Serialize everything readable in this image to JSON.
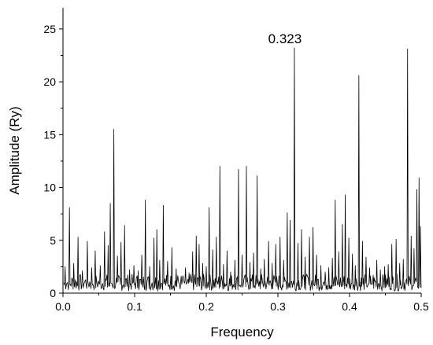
{
  "chart_data": {
    "type": "line",
    "title": "",
    "xlabel": "Frequency",
    "ylabel": "Amplitude (Ry)",
    "xlim": [
      0.0,
      0.5
    ],
    "ylim": [
      0,
      27
    ],
    "x_ticks": [
      "0.0",
      "0.1",
      "0.2",
      "0.3",
      "0.4",
      "0.5"
    ],
    "y_ticks": [
      "0",
      "5",
      "10",
      "15",
      "20",
      "25"
    ],
    "grid": false,
    "legend": "none",
    "line_color": "#000000",
    "annotation": {
      "text": "0.323",
      "x": 0.323,
      "y": 23.2
    },
    "peaks": [
      {
        "x": 0.003,
        "y": 2.5
      },
      {
        "x": 0.009,
        "y": 8.1
      },
      {
        "x": 0.015,
        "y": 2.8
      },
      {
        "x": 0.021,
        "y": 5.3
      },
      {
        "x": 0.027,
        "y": 2.1
      },
      {
        "x": 0.034,
        "y": 4.9
      },
      {
        "x": 0.04,
        "y": 2.4
      },
      {
        "x": 0.045,
        "y": 4.0
      },
      {
        "x": 0.052,
        "y": 2.6
      },
      {
        "x": 0.058,
        "y": 5.8
      },
      {
        "x": 0.063,
        "y": 4.5
      },
      {
        "x": 0.066,
        "y": 8.5
      },
      {
        "x": 0.071,
        "y": 15.5
      },
      {
        "x": 0.076,
        "y": 3.5
      },
      {
        "x": 0.081,
        "y": 4.8
      },
      {
        "x": 0.086,
        "y": 6.4
      },
      {
        "x": 0.093,
        "y": 2.2
      },
      {
        "x": 0.099,
        "y": 2.6
      },
      {
        "x": 0.105,
        "y": 2.1
      },
      {
        "x": 0.11,
        "y": 3.6
      },
      {
        "x": 0.115,
        "y": 8.8
      },
      {
        "x": 0.121,
        "y": 2.5
      },
      {
        "x": 0.127,
        "y": 5.2
      },
      {
        "x": 0.131,
        "y": 6.0
      },
      {
        "x": 0.135,
        "y": 3.1
      },
      {
        "x": 0.14,
        "y": 8.3
      },
      {
        "x": 0.146,
        "y": 3.0
      },
      {
        "x": 0.152,
        "y": 4.3
      },
      {
        "x": 0.158,
        "y": 2.3
      },
      {
        "x": 0.165,
        "y": 1.6
      },
      {
        "x": 0.171,
        "y": 2.4
      },
      {
        "x": 0.176,
        "y": 1.9
      },
      {
        "x": 0.181,
        "y": 3.9
      },
      {
        "x": 0.186,
        "y": 5.4
      },
      {
        "x": 0.19,
        "y": 4.6
      },
      {
        "x": 0.195,
        "y": 2.8
      },
      {
        "x": 0.2,
        "y": 2.5
      },
      {
        "x": 0.204,
        "y": 8.1
      },
      {
        "x": 0.209,
        "y": 4.1
      },
      {
        "x": 0.214,
        "y": 5.3
      },
      {
        "x": 0.219,
        "y": 12.0
      },
      {
        "x": 0.224,
        "y": 2.7
      },
      {
        "x": 0.229,
        "y": 4.0
      },
      {
        "x": 0.234,
        "y": 2.0
      },
      {
        "x": 0.24,
        "y": 3.1
      },
      {
        "x": 0.245,
        "y": 11.7
      },
      {
        "x": 0.25,
        "y": 3.6
      },
      {
        "x": 0.256,
        "y": 12.0
      },
      {
        "x": 0.261,
        "y": 2.9
      },
      {
        "x": 0.266,
        "y": 3.8
      },
      {
        "x": 0.271,
        "y": 11.1
      },
      {
        "x": 0.276,
        "y": 2.3
      },
      {
        "x": 0.281,
        "y": 3.2
      },
      {
        "x": 0.287,
        "y": 4.9
      },
      {
        "x": 0.292,
        "y": 2.8
      },
      {
        "x": 0.297,
        "y": 4.6
      },
      {
        "x": 0.303,
        "y": 5.3
      },
      {
        "x": 0.308,
        "y": 3.1
      },
      {
        "x": 0.313,
        "y": 7.6
      },
      {
        "x": 0.317,
        "y": 6.9
      },
      {
        "x": 0.323,
        "y": 23.2
      },
      {
        "x": 0.328,
        "y": 4.7
      },
      {
        "x": 0.333,
        "y": 6.0
      },
      {
        "x": 0.338,
        "y": 3.4
      },
      {
        "x": 0.344,
        "y": 5.3
      },
      {
        "x": 0.349,
        "y": 6.2
      },
      {
        "x": 0.354,
        "y": 3.6
      },
      {
        "x": 0.36,
        "y": 2.6
      },
      {
        "x": 0.366,
        "y": 2.0
      },
      {
        "x": 0.371,
        "y": 2.4
      },
      {
        "x": 0.376,
        "y": 3.3
      },
      {
        "x": 0.38,
        "y": 8.8
      },
      {
        "x": 0.385,
        "y": 3.9
      },
      {
        "x": 0.39,
        "y": 6.5
      },
      {
        "x": 0.394,
        "y": 9.3
      },
      {
        "x": 0.399,
        "y": 5.2
      },
      {
        "x": 0.404,
        "y": 3.7
      },
      {
        "x": 0.408,
        "y": 2.6
      },
      {
        "x": 0.413,
        "y": 20.6
      },
      {
        "x": 0.418,
        "y": 4.9
      },
      {
        "x": 0.423,
        "y": 3.4
      },
      {
        "x": 0.428,
        "y": 2.4
      },
      {
        "x": 0.433,
        "y": 1.7
      },
      {
        "x": 0.438,
        "y": 3.1
      },
      {
        "x": 0.443,
        "y": 2.2
      },
      {
        "x": 0.449,
        "y": 2.5
      },
      {
        "x": 0.454,
        "y": 2.7
      },
      {
        "x": 0.459,
        "y": 4.6
      },
      {
        "x": 0.465,
        "y": 5.1
      },
      {
        "x": 0.47,
        "y": 2.8
      },
      {
        "x": 0.475,
        "y": 3.2
      },
      {
        "x": 0.481,
        "y": 23.1
      },
      {
        "x": 0.486,
        "y": 5.4
      },
      {
        "x": 0.49,
        "y": 4.2
      },
      {
        "x": 0.494,
        "y": 9.8
      },
      {
        "x": 0.497,
        "y": 10.9
      },
      {
        "x": 0.499,
        "y": 6.3
      }
    ]
  }
}
